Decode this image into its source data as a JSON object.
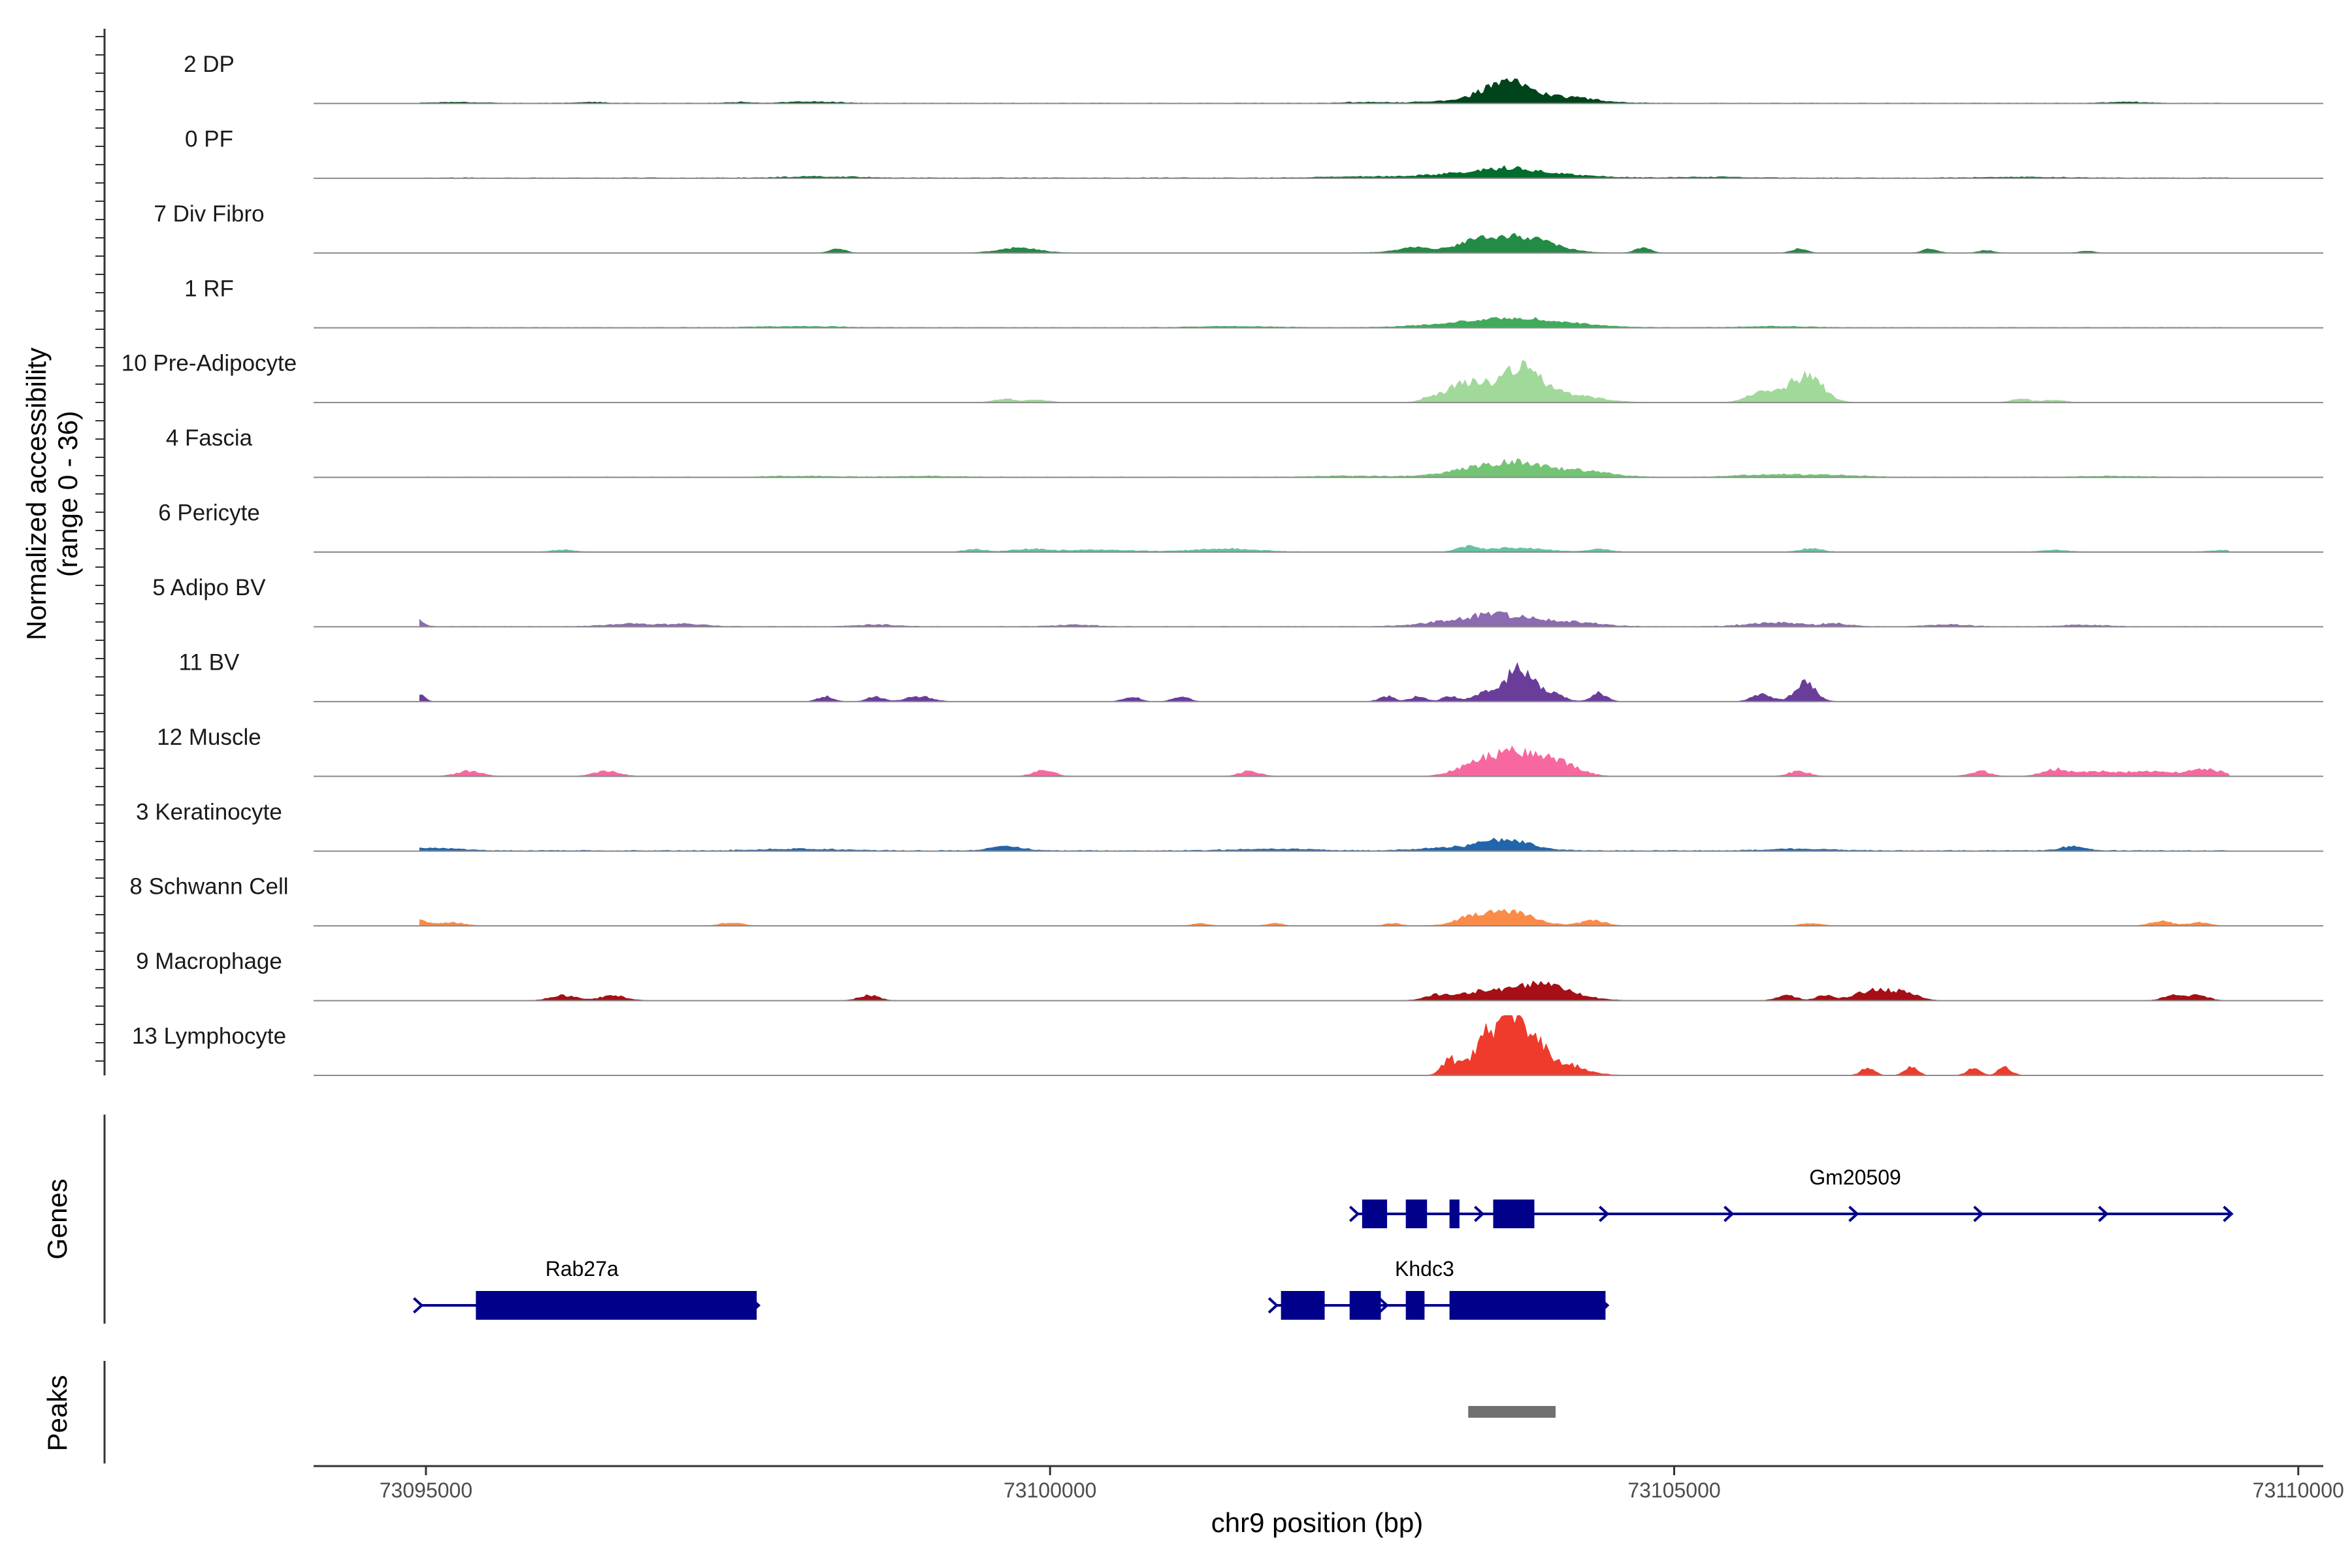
{
  "chart_data": {
    "type": "area",
    "title": "",
    "chromosome": "chr9",
    "xlabel": "chr9 position (bp)",
    "ylabel": "Normalized accessibility",
    "ylabel_sub": "(range 0 - 36)",
    "y_range": [
      0,
      36
    ],
    "x_range": [
      73094100,
      73110200
    ],
    "x_ticks": [
      73095000,
      73100000,
      73105000,
      73110000
    ],
    "x_tick_labels": [
      "73095000",
      "73100000",
      "73105000",
      "73110000"
    ],
    "panel_labels": {
      "genes": "Genes",
      "peaks": "Peaks"
    },
    "series": [
      {
        "name": "2 DP",
        "color": "#00441b",
        "base": 0.3,
        "noise": 0.5,
        "peaks": [
          [
            73103660,
            10,
            180
          ],
          [
            73103900,
            2.5,
            350
          ],
          [
            73104200,
            1.5,
            200
          ],
          [
            73103300,
            1.2,
            300
          ],
          [
            73095250,
            0.6,
            200
          ],
          [
            73096300,
            0.6,
            120
          ],
          [
            73097500,
            0.6,
            100
          ],
          [
            73098100,
            0.8,
            200
          ],
          [
            73102500,
            0.6,
            150
          ],
          [
            73108600,
            0.7,
            150
          ]
        ]
      },
      {
        "name": "0 PF",
        "color": "#006d2c",
        "base": 0.4,
        "noise": 0.5,
        "peaks": [
          [
            73103680,
            4.5,
            250
          ],
          [
            73103300,
            2.0,
            350
          ],
          [
            73104200,
            1.2,
            250
          ],
          [
            73098200,
            0.7,
            300
          ],
          [
            73102400,
            0.6,
            300
          ],
          [
            73105300,
            0.5,
            300
          ],
          [
            73107800,
            0.5,
            300
          ]
        ]
      },
      {
        "name": "7 Div Fibro",
        "color": "#238b45",
        "base": 0.0,
        "noise": 0.4,
        "peaks": [
          [
            73103750,
            10,
            250
          ],
          [
            73103400,
            4.0,
            120
          ],
          [
            73103050,
            2.0,
            250
          ],
          [
            73098300,
            2.5,
            60
          ],
          [
            73099750,
            3.0,
            160
          ],
          [
            73104750,
            3.0,
            60
          ],
          [
            73106000,
            2.5,
            60
          ],
          [
            73107050,
            2.5,
            60
          ],
          [
            73107500,
            1.5,
            60
          ],
          [
            73108300,
            1.2,
            60
          ],
          [
            73109550,
            1.0,
            40
          ],
          [
            73102900,
            1.5,
            100
          ]
        ]
      },
      {
        "name": "1 RF",
        "color": "#41ab5d",
        "base": 0.3,
        "noise": 0.4,
        "peaks": [
          [
            73103700,
            5,
            300
          ],
          [
            73103200,
            1.5,
            300
          ],
          [
            73104200,
            1.5,
            250
          ],
          [
            73098000,
            0.6,
            300
          ],
          [
            73101500,
            0.6,
            300
          ],
          [
            73105800,
            0.6,
            250
          ]
        ]
      },
      {
        "name": "10 Pre-Adipocyte",
        "color": "#a1d99b",
        "base": 0.0,
        "noise": 0.5,
        "peaks": [
          [
            73103750,
            20,
            160
          ],
          [
            73103400,
            8,
            120
          ],
          [
            73103250,
            6,
            100
          ],
          [
            73104100,
            5,
            250
          ],
          [
            73106080,
            14,
            120
          ],
          [
            73105850,
            6,
            120
          ],
          [
            73105650,
            3.5,
            100
          ],
          [
            73099650,
            2.0,
            100
          ],
          [
            73099920,
            1.5,
            80
          ],
          [
            73107780,
            2.0,
            80
          ],
          [
            73108050,
            1.5,
            80
          ],
          [
            73103050,
            3,
            80
          ]
        ]
      },
      {
        "name": "4 Fascia",
        "color": "#74c476",
        "base": 0.3,
        "noise": 0.5,
        "peaks": [
          [
            73103750,
            8,
            250
          ],
          [
            73103350,
            3,
            250
          ],
          [
            73104300,
            3,
            200
          ],
          [
            73105800,
            1.5,
            250
          ],
          [
            73106300,
            1.0,
            200
          ],
          [
            73102400,
            0.7,
            250
          ],
          [
            73099000,
            0.5,
            250
          ],
          [
            73098000,
            0.5,
            250
          ],
          [
            73108500,
            0.5,
            250
          ]
        ]
      },
      {
        "name": "6 Pericyte",
        "color": "#66c2a4",
        "base": 0.2,
        "noise": 0.5,
        "peaks": [
          [
            73103350,
            3.0,
            80
          ],
          [
            73103750,
            2.5,
            200
          ],
          [
            73104400,
            1.8,
            80
          ],
          [
            73106100,
            2.0,
            80
          ],
          [
            73101400,
            1.8,
            250
          ],
          [
            73099850,
            1.5,
            150
          ],
          [
            73099400,
            1.5,
            80
          ],
          [
            73096100,
            1.2,
            80
          ],
          [
            73100400,
            1.2,
            250
          ],
          [
            73108050,
            1.0,
            100
          ],
          [
            73109400,
            1.0,
            100
          ]
        ]
      },
      {
        "name": "5 Adipo BV",
        "color": "#8c6bb1",
        "base": 0.3,
        "noise": 0.6,
        "peaks": [
          [
            73094950,
            3.5,
            40
          ],
          [
            73103650,
            6,
            250
          ],
          [
            73103250,
            3,
            250
          ],
          [
            73104200,
            2.5,
            200
          ],
          [
            73105800,
            2.5,
            200
          ],
          [
            73106300,
            1.5,
            120
          ],
          [
            73096650,
            1.5,
            200
          ],
          [
            73097100,
            1.2,
            150
          ],
          [
            73098600,
            1.2,
            150
          ],
          [
            73100200,
            1.0,
            150
          ],
          [
            73107200,
            1.0,
            150
          ],
          [
            73108300,
            1.0,
            150
          ]
        ]
      },
      {
        "name": "11 BV",
        "color": "#6a3d9a",
        "base": 0.0,
        "noise": 0.5,
        "peaks": [
          [
            73103760,
            20,
            100
          ],
          [
            73104000,
            5,
            100
          ],
          [
            73104400,
            5,
            60
          ],
          [
            73106050,
            11,
            80
          ],
          [
            73105700,
            4,
            80
          ],
          [
            73103500,
            5,
            100
          ],
          [
            73094950,
            5,
            40
          ],
          [
            73098200,
            3,
            60
          ],
          [
            73098600,
            3,
            60
          ],
          [
            73098950,
            3,
            100
          ],
          [
            73100650,
            3,
            60
          ],
          [
            73101050,
            3,
            60
          ],
          [
            73102700,
            3,
            60
          ],
          [
            73102950,
            3,
            60
          ],
          [
            73103200,
            3,
            60
          ]
        ]
      },
      {
        "name": "12 Muscle",
        "color": "#f768a1",
        "base": 0.0,
        "noise": 0.5,
        "peaks": [
          [
            73103750,
            14,
            200
          ],
          [
            73103400,
            6,
            150
          ],
          [
            73104100,
            6,
            150
          ],
          [
            73095350,
            3,
            100
          ],
          [
            73096450,
            3,
            100
          ],
          [
            73099950,
            4,
            80
          ],
          [
            73101600,
            3,
            80
          ],
          [
            73106000,
            3,
            80
          ],
          [
            73107450,
            3,
            80
          ],
          [
            73108050,
            4,
            100
          ],
          [
            73108400,
            3,
            150
          ],
          [
            73108800,
            3,
            150
          ],
          [
            73109250,
            4,
            150
          ]
        ]
      },
      {
        "name": "3 Keratinocyte",
        "color": "#2166ac",
        "base": 0.5,
        "noise": 0.5,
        "peaks": [
          [
            73103650,
            6,
            200
          ],
          [
            73103200,
            1.5,
            250
          ],
          [
            73099650,
            2.5,
            120
          ],
          [
            73108200,
            2.5,
            100
          ],
          [
            73095050,
            1.5,
            200
          ],
          [
            73098000,
            1.0,
            300
          ],
          [
            73101800,
            1.0,
            300
          ],
          [
            73106000,
            1.0,
            250
          ]
        ]
      },
      {
        "name": "8 Schwann Cell",
        "color": "#fb8b49",
        "base": 0.0,
        "noise": 0.5,
        "peaks": [
          [
            73103650,
            9,
            200
          ],
          [
            73103350,
            3,
            120
          ],
          [
            73104350,
            3,
            100
          ],
          [
            73094950,
            3,
            60
          ],
          [
            73095200,
            2,
            100
          ],
          [
            73097450,
            2,
            80
          ],
          [
            73101800,
            1.5,
            60
          ],
          [
            73102750,
            1.5,
            60
          ],
          [
            73106100,
            1.5,
            80
          ],
          [
            73108900,
            3,
            80
          ],
          [
            73109200,
            2,
            80
          ],
          [
            73101200,
            1.5,
            60
          ]
        ]
      },
      {
        "name": "9 Macrophage",
        "color": "#a50f15",
        "base": 0.0,
        "noise": 0.5,
        "peaks": [
          [
            73103900,
            10,
            250
          ],
          [
            73103400,
            4,
            150
          ],
          [
            73103100,
            3,
            100
          ],
          [
            73106600,
            6,
            150
          ],
          [
            73106850,
            4,
            100
          ],
          [
            73096100,
            3,
            100
          ],
          [
            73096500,
            3,
            100
          ],
          [
            73098550,
            3,
            80
          ],
          [
            73105900,
            3,
            80
          ],
          [
            73106200,
            3,
            60
          ],
          [
            73109000,
            3,
            80
          ],
          [
            73109200,
            3,
            80
          ]
        ]
      },
      {
        "name": "13 Lymphocyte",
        "color": "#ef3b2c",
        "base": 0.0,
        "noise": 0.6,
        "peaks": [
          [
            73103650,
            32,
            110
          ],
          [
            73103850,
            22,
            110
          ],
          [
            73103450,
            14,
            100
          ],
          [
            73103200,
            9,
            60
          ],
          [
            73104150,
            6,
            150
          ],
          [
            73106550,
            5,
            50
          ],
          [
            73106900,
            5,
            50
          ],
          [
            73107400,
            5,
            50
          ],
          [
            73107650,
            5,
            50
          ]
        ]
      }
    ],
    "genes": [
      {
        "name": "Rab27a",
        "row": 2,
        "start": 73094950,
        "end": 73097650,
        "label_x": 73096250,
        "strand": "+",
        "exons": [
          [
            73095400,
            73097650
          ]
        ]
      },
      {
        "name": "Khdc3",
        "row": 2,
        "start": 73101800,
        "end": 73104450,
        "label_x": 73103000,
        "strand": "+",
        "exons": [
          [
            73101850,
            73102200
          ],
          [
            73102400,
            73102650
          ],
          [
            73102850,
            73103000
          ],
          [
            73103200,
            73104450
          ]
        ]
      },
      {
        "name": "Gm20509",
        "row": 1,
        "start": 73102450,
        "end": 73109450,
        "label_x": 73106450,
        "strand": "+",
        "exons": [
          [
            73102500,
            73102700
          ],
          [
            73102850,
            73103020
          ],
          [
            73103200,
            73103280
          ],
          [
            73103550,
            73103880
          ]
        ]
      }
    ],
    "peaks_track": [
      {
        "start": 73103350,
        "end": 73104050
      }
    ]
  }
}
